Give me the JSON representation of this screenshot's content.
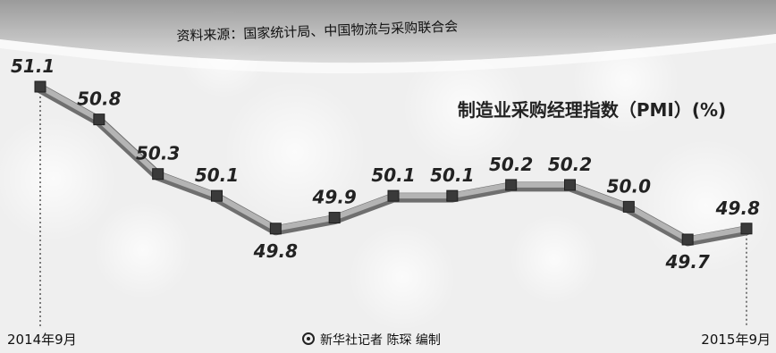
{
  "source": "资料来源：国家统计局、中国物流与采购联合会",
  "credit": "新华社记者 陈琛 编制",
  "colors": {
    "background": "#f2f2f2",
    "line": "#9a9a9a",
    "marker": "#3a3a3a",
    "text": "#222222"
  },
  "chart_data": {
    "type": "line",
    "title": "制造业采购经理指数（PMI）(%)",
    "x": [
      "2014年9月",
      "",
      "",
      "",
      "",
      "",
      "",
      "",
      "",
      "",
      "",
      "",
      "2015年9月"
    ],
    "endpoint_labels": [
      "2014年9月",
      "2015年9月"
    ],
    "series": [
      {
        "values": [
          51.1,
          50.8,
          50.3,
          50.1,
          49.8,
          49.9,
          50.1,
          50.1,
          50.2,
          50.2,
          50.0,
          49.7,
          49.8
        ],
        "labels": [
          "51.1",
          "50.8",
          "50.3",
          "50.1",
          "49.8",
          "49.9",
          "50.1",
          "50.1",
          "50.2",
          "50.2",
          "50.0",
          "49.7",
          "49.8"
        ]
      }
    ],
    "ylim": [
      49.5,
      51.2
    ],
    "grid": false,
    "legend": "none"
  }
}
